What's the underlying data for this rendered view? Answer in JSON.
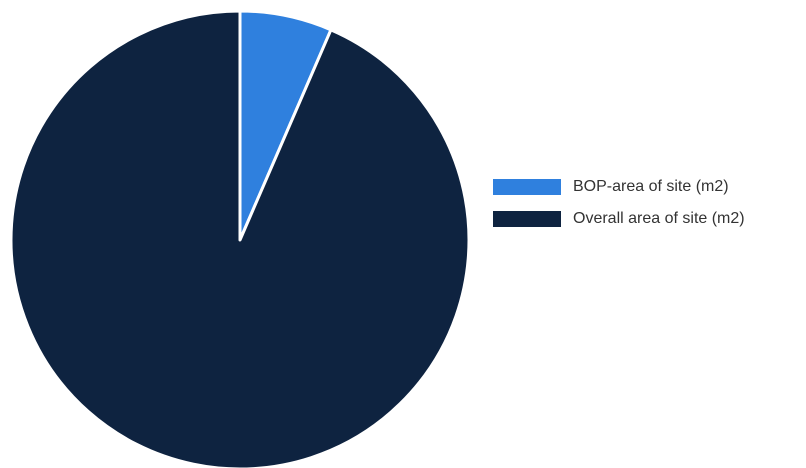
{
  "chart_data": {
    "type": "pie",
    "title": "",
    "slices": [
      {
        "label": "BOP-area of site (m2)",
        "value": 6.5,
        "color": "#2f80de"
      },
      {
        "label": "Overall area of site (m2)",
        "value": 93.5,
        "color": "#0e2340"
      }
    ],
    "legend_placement": "right",
    "start_angle_deg": 0,
    "direction": "clockwise"
  },
  "legend": {
    "items": [
      {
        "label": "BOP-area of site (m2)",
        "color": "#2f80de"
      },
      {
        "label": "Overall area of site (m2)",
        "color": "#0e2340"
      }
    ]
  }
}
